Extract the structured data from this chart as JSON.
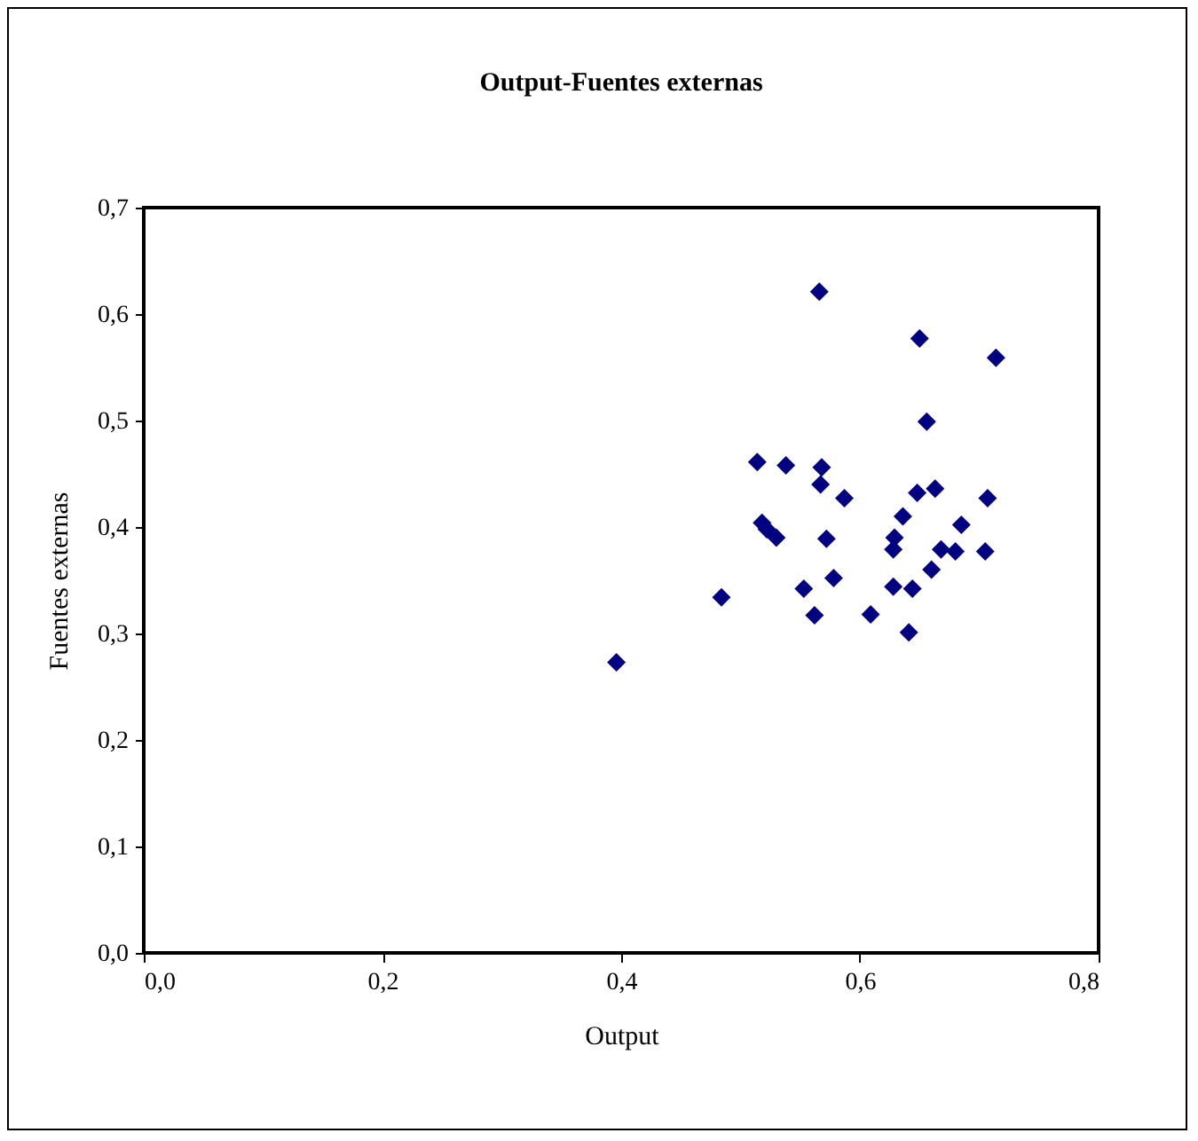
{
  "chart_data": {
    "type": "scatter",
    "title": "Output-Fuentes externas",
    "xlabel": "Output",
    "ylabel": "Fuentes externas",
    "marker": "diamond",
    "grid": false,
    "xlim": [
      0,
      0.8
    ],
    "xticks": [
      {
        "value": 0,
        "label": "0,0"
      },
      {
        "value": 0.2,
        "label": "0,2"
      },
      {
        "value": 0.4,
        "label": "0,4"
      },
      {
        "value": 0.6,
        "label": "0,6"
      },
      {
        "value": 0.8,
        "label": "0,8"
      }
    ],
    "ylim": [
      0,
      0.7
    ],
    "yticks": [
      {
        "value": 0,
        "label": "0,0"
      },
      {
        "value": 0.1,
        "label": "0,1"
      },
      {
        "value": 0.2,
        "label": "0,2"
      },
      {
        "value": 0.3,
        "label": "0,3"
      },
      {
        "value": 0.4,
        "label": "0,4"
      },
      {
        "value": 0.5,
        "label": "0,5"
      },
      {
        "value": 0.6,
        "label": "0,6"
      },
      {
        "value": 0.7,
        "label": "0,7"
      }
    ],
    "series": [
      {
        "color": "#000080",
        "x": [
          0.566,
          0.514,
          0.538,
          0.568,
          0.567,
          0.587,
          0.518,
          0.53,
          0.572,
          0.484,
          0.553,
          0.578,
          0.562,
          0.609,
          0.396,
          0.65,
          0.714,
          0.656,
          0.648,
          0.663,
          0.707,
          0.636,
          0.685,
          0.629,
          0.628,
          0.668,
          0.68,
          0.705,
          0.66,
          0.628,
          0.644,
          0.641,
          0.522
        ],
        "values": [
          0.621,
          0.461,
          0.458,
          0.456,
          0.44,
          0.427,
          0.404,
          0.39,
          0.389,
          0.334,
          0.342,
          0.352,
          0.317,
          0.318,
          0.273,
          0.577,
          0.559,
          0.499,
          0.432,
          0.436,
          0.427,
          0.41,
          0.402,
          0.39,
          0.379,
          0.379,
          0.377,
          0.377,
          0.36,
          0.344,
          0.342,
          0.301,
          0.398
        ]
      }
    ]
  }
}
